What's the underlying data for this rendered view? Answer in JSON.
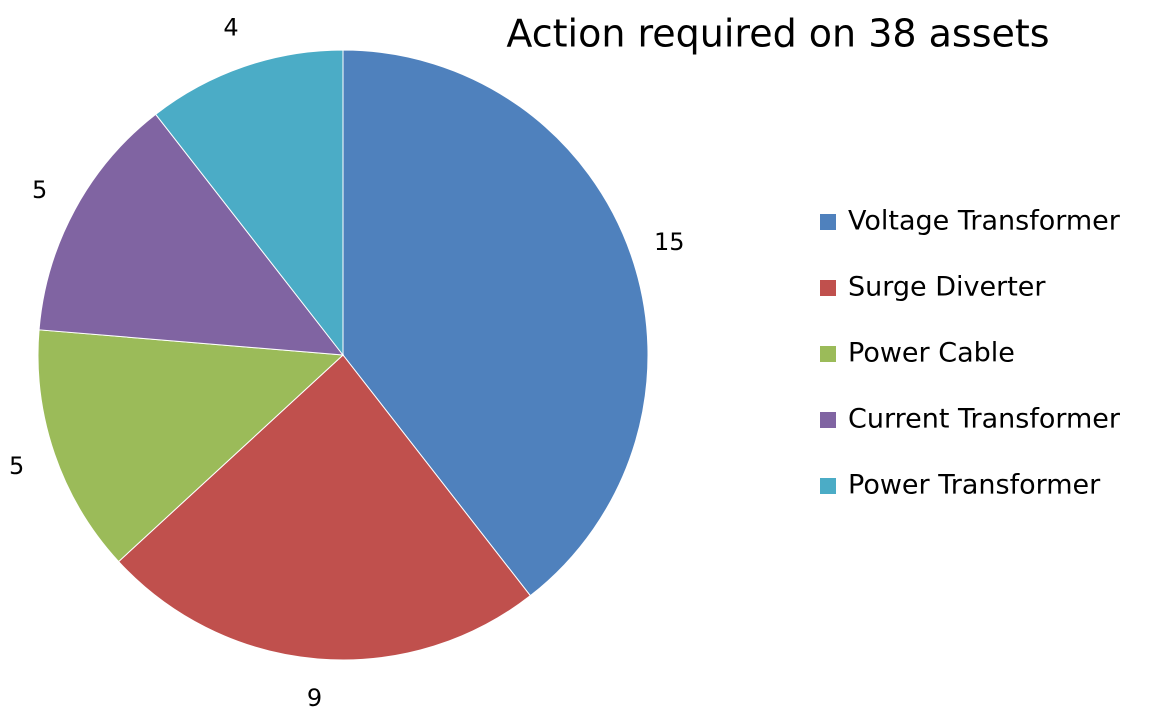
{
  "chart_data": {
    "type": "pie",
    "title": "Action required on 38 assets",
    "categories": [
      "Voltage Transformer",
      "Surge Diverter",
      "Power Cable",
      "Current Transformer",
      "Power Transformer"
    ],
    "values": [
      15,
      9,
      5,
      5,
      4
    ],
    "colors": [
      "#4f81bd",
      "#c0504d",
      "#9bbb59",
      "#8064a2",
      "#4bacc6"
    ],
    "legend": "right"
  }
}
